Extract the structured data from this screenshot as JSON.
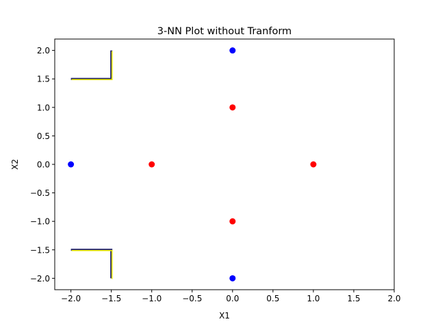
{
  "chart_data": {
    "type": "scatter",
    "title": "3-NN Plot without Tranform",
    "xlabel": "X1",
    "ylabel": "X2",
    "xlim": [
      -2.2,
      2.0
    ],
    "ylim": [
      -2.2,
      2.2
    ],
    "grid": false,
    "xticks": [
      -2.0,
      -1.5,
      -1.0,
      -0.5,
      0.0,
      0.5,
      1.0,
      1.5,
      2.0
    ],
    "xtick_labels": [
      "−2.0",
      "−1.5",
      "−1.0",
      "−0.5",
      "0.0",
      "0.5",
      "1.0",
      "1.5",
      "2.0"
    ],
    "yticks": [
      2.0,
      1.5,
      1.0,
      0.5,
      0.0,
      -0.5,
      -1.0,
      -1.5,
      -2.0
    ],
    "ytick_labels": [
      "2.0",
      "1.5",
      "1.0",
      "0.5",
      "0.0",
      "−0.5",
      "−1.0",
      "−1.5",
      "−2.0"
    ],
    "series": [
      {
        "color": "#0000ff",
        "x": [
          0.0,
          -2.0,
          0.0
        ],
        "y": [
          2.0,
          0.0,
          -2.0
        ]
      },
      {
        "color": "#ff0000",
        "x": [
          0.0,
          -1.0,
          1.0,
          0.0
        ],
        "y": [
          1.0,
          0.0,
          0.0,
          -1.0
        ]
      }
    ],
    "decision_boundary": {
      "colors": [
        "#1f1f6e",
        "#e8e800"
      ],
      "paths": [
        [
          [
            -2.0,
            1.5
          ],
          [
            -1.5,
            1.5
          ],
          [
            -1.5,
            2.0
          ]
        ],
        [
          [
            -2.0,
            -1.5
          ],
          [
            -1.5,
            -1.5
          ],
          [
            -1.5,
            -2.0
          ]
        ]
      ]
    }
  }
}
